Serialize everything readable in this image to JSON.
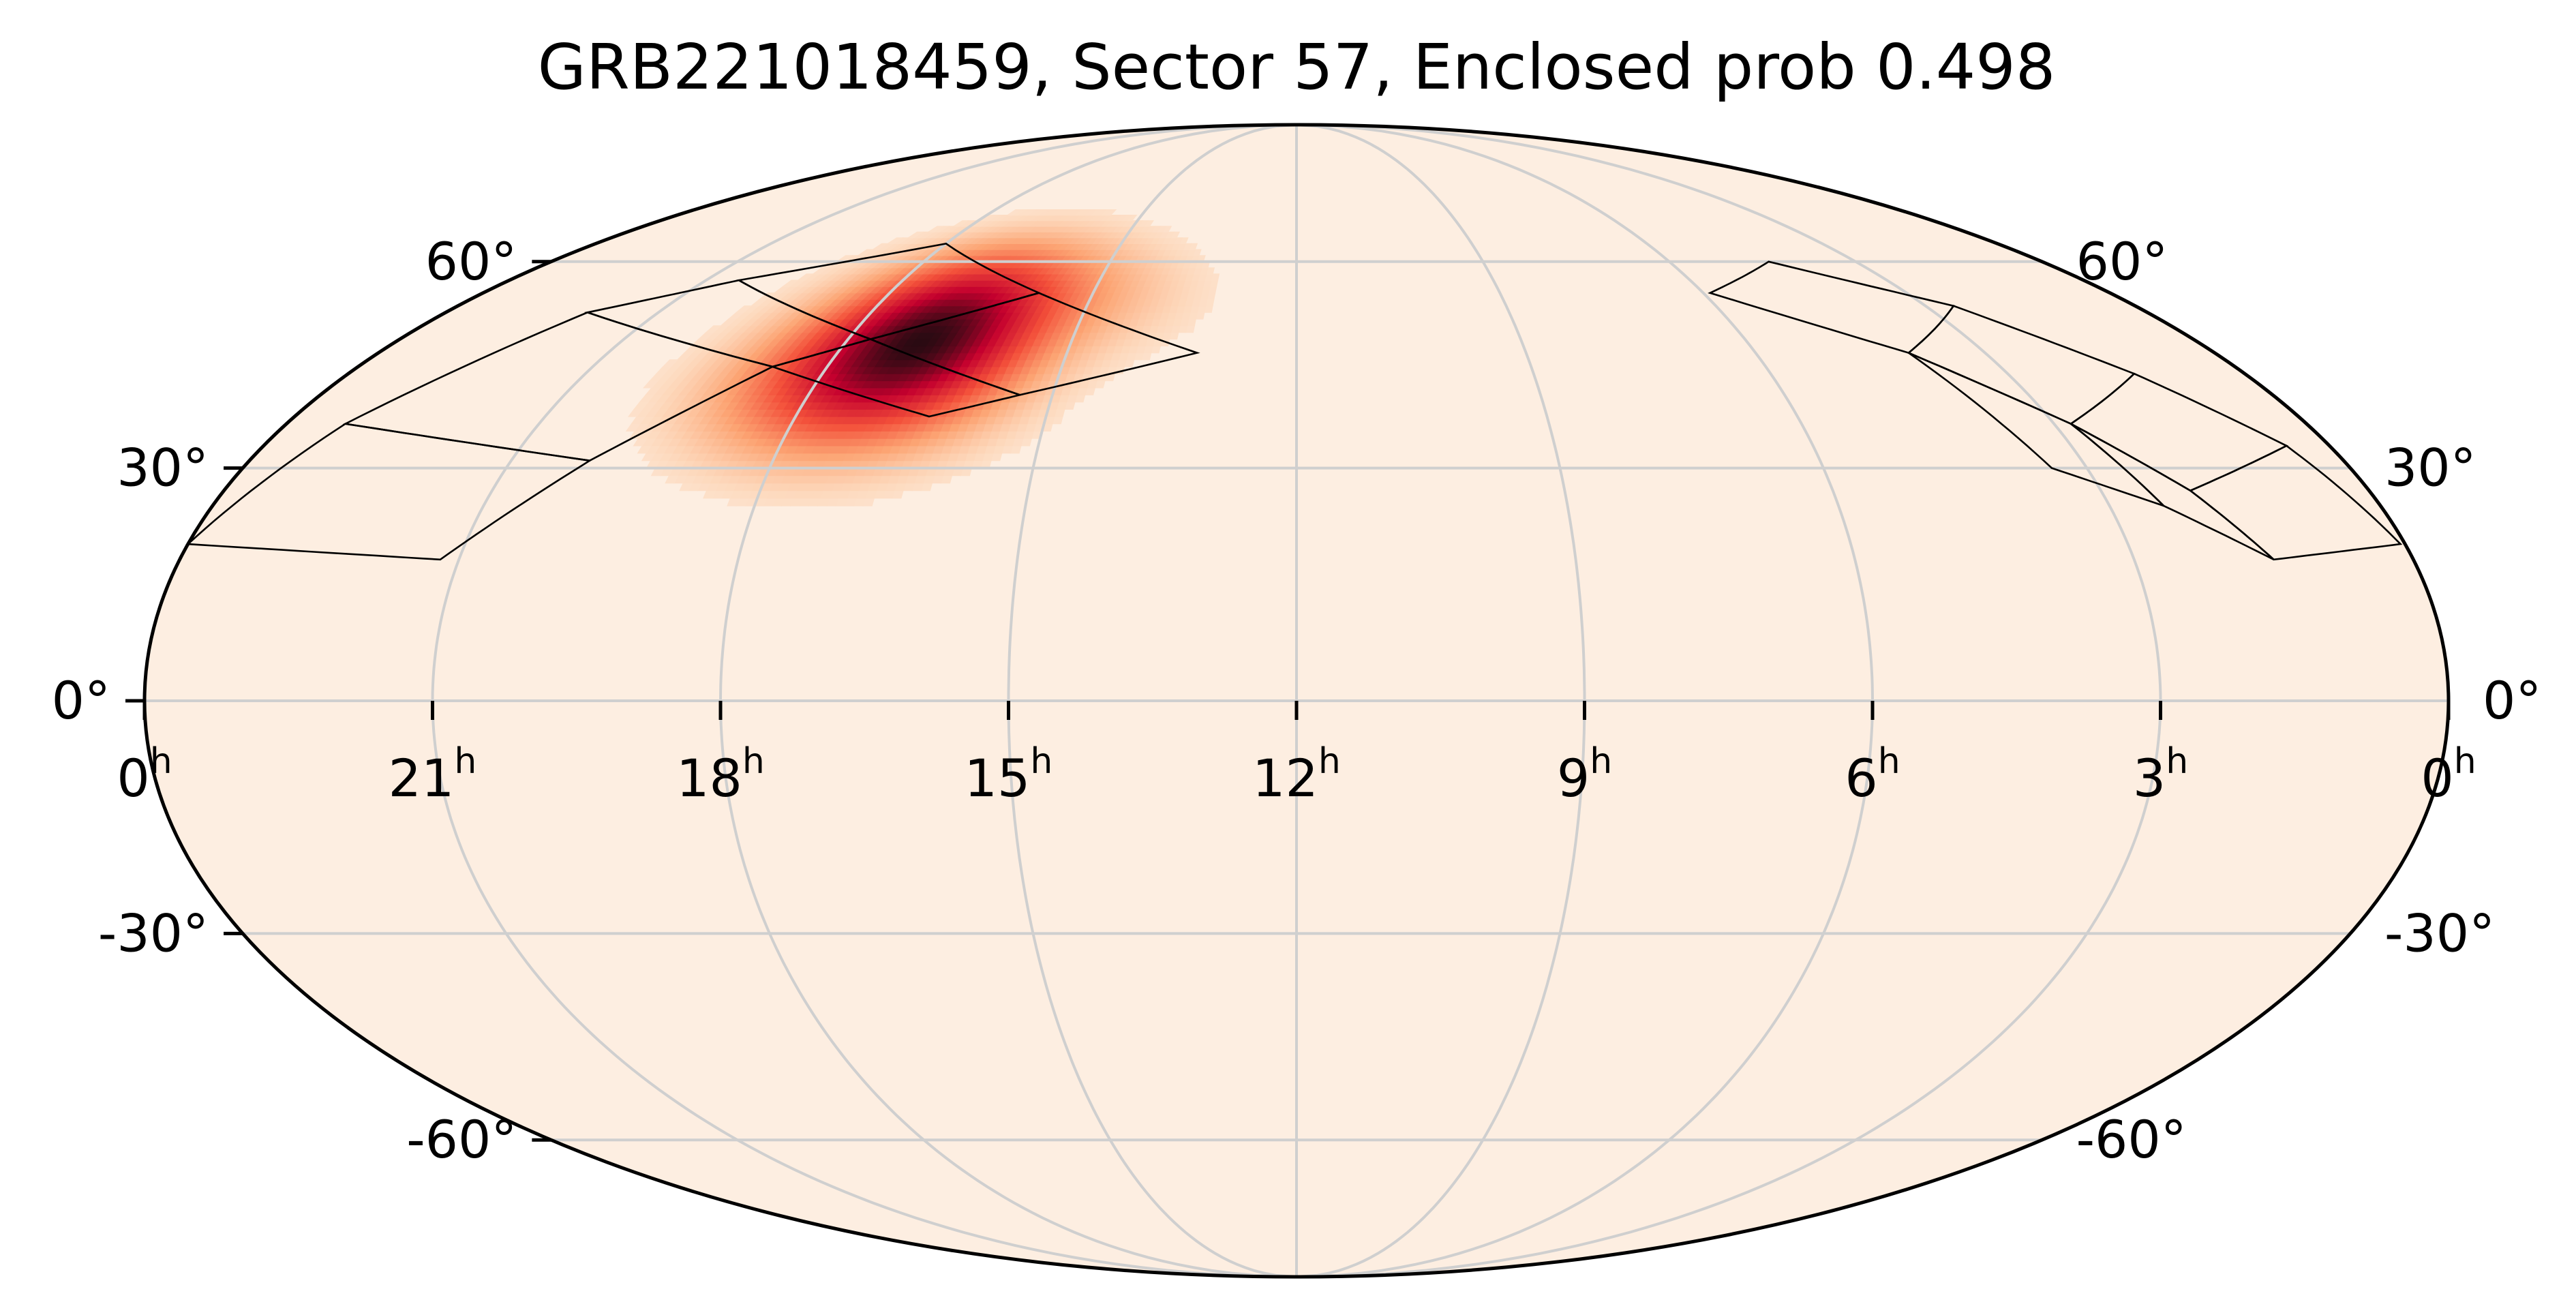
{
  "chart_data": {
    "type": "heatmap",
    "projection": "mollweide",
    "title": "GRB221018459, Sector 57, Enclosed prob 0.498",
    "grid": true,
    "colors": {
      "background_fill": "#fdeee1",
      "peak": "#2a0a12",
      "high": "#c4002e",
      "mid": "#f3503a",
      "low": "#fca473",
      "faint": "#fdd9bd",
      "grid_lines": "#cfcfcf",
      "footprint_outline": "#000000"
    },
    "ra_ticks": [
      {
        "ra_hours": 24,
        "label": "0",
        "sup": "h"
      },
      {
        "ra_hours": 21,
        "label": "21",
        "sup": "h"
      },
      {
        "ra_hours": 18,
        "label": "18",
        "sup": "h"
      },
      {
        "ra_hours": 15,
        "label": "15",
        "sup": "h"
      },
      {
        "ra_hours": 12,
        "label": "12",
        "sup": "h"
      },
      {
        "ra_hours": 9,
        "label": "9",
        "sup": "h"
      },
      {
        "ra_hours": 6,
        "label": "6",
        "sup": "h"
      },
      {
        "ra_hours": 3,
        "label": "3",
        "sup": "h"
      },
      {
        "ra_hours": 0,
        "label": "0",
        "sup": "h"
      }
    ],
    "dec_ticks_left": [
      {
        "dec": 60,
        "label": "60°"
      },
      {
        "dec": 30,
        "label": "30°"
      },
      {
        "dec": 0,
        "label": "0°"
      },
      {
        "dec": -30,
        "label": "-30°"
      },
      {
        "dec": -60,
        "label": "-60°"
      }
    ],
    "dec_ticks_right": [
      {
        "dec": 60,
        "label": "60°"
      },
      {
        "dec": 30,
        "label": "30°"
      },
      {
        "dec": 0,
        "label": "0°"
      },
      {
        "dec": -30,
        "label": "-30°"
      },
      {
        "dec": -60,
        "label": "-60°"
      }
    ],
    "probability_peak": {
      "ra_hours": 16.9,
      "dec": 48,
      "value": 1.0
    },
    "probability_blobs": [
      {
        "ra_hours": 16.9,
        "dec": 48,
        "sigma_ra_hours": 0.9,
        "sigma_dec": 7,
        "weight": 1.0
      },
      {
        "ra_hours": 17.6,
        "dec": 42,
        "sigma_ra_hours": 1.0,
        "sigma_dec": 7,
        "weight": 0.55
      },
      {
        "ra_hours": 16.3,
        "dec": 55,
        "sigma_ra_hours": 1.4,
        "sigma_dec": 6,
        "weight": 0.35
      }
    ],
    "sector_footprints": [
      {
        "corners_ra_dec": [
          [
            22.0,
            52
          ],
          [
            20.5,
            57
          ],
          [
            17.7,
            48
          ],
          [
            18.7,
            44
          ]
        ]
      },
      {
        "corners_ra_dec": [
          [
            20.5,
            57
          ],
          [
            18.0,
            63
          ],
          [
            15.8,
            55
          ],
          [
            17.7,
            48
          ]
        ]
      },
      {
        "corners_ra_dec": [
          [
            18.7,
            44
          ],
          [
            17.7,
            48
          ],
          [
            15.4,
            40
          ],
          [
            16.4,
            37
          ]
        ]
      },
      {
        "corners_ra_dec": [
          [
            17.7,
            48
          ],
          [
            15.8,
            55
          ],
          [
            13.3,
            46
          ],
          [
            15.4,
            40
          ]
        ]
      },
      {
        "corners_ra_dec": [
          [
            23.3,
            36
          ],
          [
            22.0,
            52
          ],
          [
            18.7,
            44
          ],
          [
            20.1,
            31
          ]
        ]
      },
      {
        "corners_ra_dec": [
          [
            24.0,
            20
          ],
          [
            23.3,
            36
          ],
          [
            20.1,
            31
          ],
          [
            21.2,
            18
          ]
        ]
      },
      {
        "corners_ra_dec": [
          [
            4.4,
            60
          ],
          [
            5.9,
            55
          ],
          [
            4.0,
            46
          ],
          [
            2.6,
            53
          ]
        ]
      },
      {
        "corners_ra_dec": [
          [
            2.6,
            53
          ],
          [
            4.0,
            46
          ],
          [
            2.8,
            36
          ],
          [
            1.4,
            43
          ]
        ]
      },
      {
        "corners_ra_dec": [
          [
            1.4,
            43
          ],
          [
            2.8,
            36
          ],
          [
            2.0,
            27
          ],
          [
            0.5,
            33
          ]
        ]
      },
      {
        "corners_ra_dec": [
          [
            2.8,
            36
          ],
          [
            4.0,
            46
          ],
          [
            3.4,
            30
          ],
          [
            2.4,
            25
          ]
        ]
      },
      {
        "corners_ra_dec": [
          [
            2.0,
            27
          ],
          [
            2.8,
            36
          ],
          [
            2.4,
            25
          ],
          [
            1.5,
            18
          ]
        ]
      },
      {
        "corners_ra_dec": [
          [
            0.5,
            33
          ],
          [
            2.0,
            27
          ],
          [
            1.5,
            18
          ],
          [
            0.05,
            20
          ]
        ]
      }
    ]
  }
}
